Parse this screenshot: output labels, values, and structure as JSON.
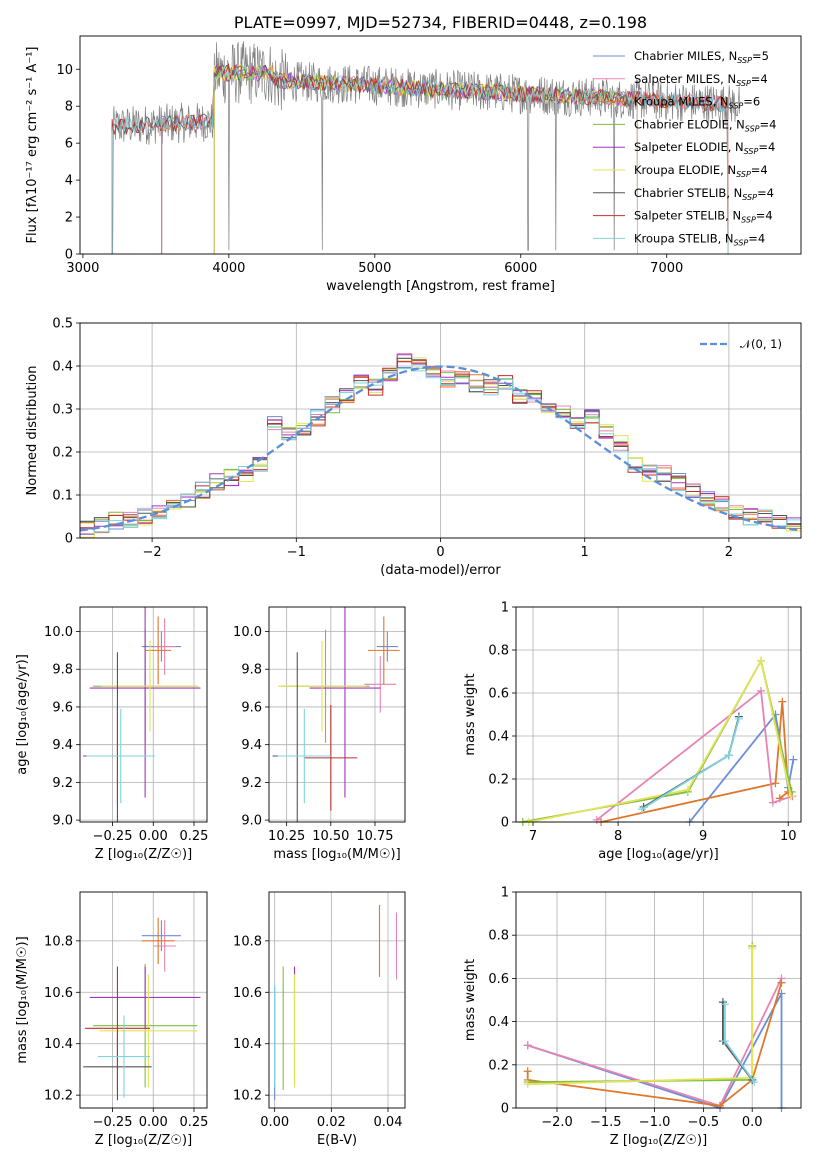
{
  "chart_data": [
    {
      "id": "spectrum",
      "type": "line",
      "title": "PLATE=0997, MJD=52734, FIBERID=0448, z=0.198",
      "xlabel": "wavelength [Angstrom, rest frame]",
      "ylabel": "Flux [fλ10⁻¹⁷ erg cm⁻² s⁻¹ A⁻¹]",
      "xlim": [
        2980,
        7920
      ],
      "ylim": [
        0,
        11.8
      ],
      "xticks": [
        3000,
        4000,
        5000,
        6000,
        7000
      ],
      "yticks": [
        0,
        2,
        4,
        6,
        8,
        10
      ],
      "grid": false,
      "legend_position": "top-right",
      "series": [
        {
          "name": "Chabrier MILES, N",
          "sub": "SSP",
          "suffix": "=5",
          "color": "#6a8fd8",
          "start": 3540,
          "end": 7420
        },
        {
          "name": "Salpeter MILES, N",
          "sub": "SSP",
          "suffix": "=4",
          "color": "#e783b3",
          "start": 3540,
          "end": 7420
        },
        {
          "name": "Kroupa MILES, N",
          "sub": "SSP",
          "suffix": "=6",
          "color": "#e0762a",
          "start": 3540,
          "end": 7420
        },
        {
          "name": "Chabrier ELODIE, N",
          "sub": "SSP",
          "suffix": "=4",
          "color": "#7fbf3f",
          "start": 3900,
          "end": 6800
        },
        {
          "name": "Salpeter ELODIE, N",
          "sub": "SSP",
          "suffix": "=4",
          "color": "#a235c2",
          "start": 3900,
          "end": 6800
        },
        {
          "name": "Kroupa ELODIE, N",
          "sub": "SSP",
          "suffix": "=4",
          "color": "#e3e35a",
          "start": 3900,
          "end": 6800
        },
        {
          "name": "Chabrier STELIB, N",
          "sub": "SSP",
          "suffix": "=4",
          "color": "#555555",
          "start": 3200,
          "end": 7420
        },
        {
          "name": "Salpeter STELIB, N",
          "sub": "SSP",
          "suffix": "=4",
          "color": "#c0302a",
          "start": 3200,
          "end": 7420
        },
        {
          "name": "Kroupa STELIB, N",
          "sub": "SSP",
          "suffix": "=4",
          "color": "#7fd3e0",
          "start": 3200,
          "end": 7420
        }
      ],
      "data_color": "#808080"
    },
    {
      "id": "residuals",
      "type": "line",
      "xlabel": "(data-model)/error",
      "ylabel": "Normed distribution",
      "xlim": [
        -2.5,
        2.5
      ],
      "ylim": [
        0,
        0.5
      ],
      "xticks": [
        -2,
        -1,
        0,
        1,
        2
      ],
      "yticks": [
        0.0,
        0.1,
        0.2,
        0.3,
        0.4,
        0.5
      ],
      "grid": true,
      "legend_position": "top-right",
      "gaussian_label": "𝒩(0, 1)",
      "gaussian_color": "#5b8fd8",
      "bins": [
        -2.5,
        -2.4,
        -2.3,
        -2.2,
        -2.1,
        -2.0,
        -1.9,
        -1.8,
        -1.7,
        -1.6,
        -1.5,
        -1.4,
        -1.3,
        -1.2,
        -1.1,
        -1.0,
        -0.9,
        -0.8,
        -0.7,
        -0.6,
        -0.5,
        -0.4,
        -0.3,
        -0.2,
        -0.1,
        0.0,
        0.1,
        0.2,
        0.3,
        0.4,
        0.5,
        0.6,
        0.7,
        0.8,
        0.9,
        1.0,
        1.1,
        1.2,
        1.3,
        1.4,
        1.5,
        1.6,
        1.7,
        1.8,
        1.9,
        2.0,
        2.1,
        2.2,
        2.3,
        2.4
      ],
      "base_values": [
        0.02,
        0.03,
        0.04,
        0.04,
        0.05,
        0.06,
        0.08,
        0.09,
        0.11,
        0.13,
        0.14,
        0.15,
        0.17,
        0.27,
        0.24,
        0.25,
        0.28,
        0.31,
        0.33,
        0.36,
        0.35,
        0.38,
        0.41,
        0.4,
        0.39,
        0.37,
        0.37,
        0.36,
        0.35,
        0.36,
        0.33,
        0.33,
        0.31,
        0.29,
        0.27,
        0.28,
        0.25,
        0.22,
        0.17,
        0.15,
        0.15,
        0.13,
        0.11,
        0.09,
        0.08,
        0.06,
        0.05,
        0.05,
        0.04,
        0.03
      ]
    },
    {
      "id": "age-vs-z",
      "type": "scatter",
      "xlabel": "Z [log₁₀(Z/Z☉)]",
      "ylabel": "age  [log₁₀(age/yr)]",
      "xlim": [
        -0.45,
        0.33
      ],
      "ylim": [
        8.99,
        10.13
      ],
      "xticks": [
        -0.25,
        0.0,
        0.25
      ],
      "xtick_labels": [
        "−0.25",
        "0.00",
        "0.25"
      ],
      "yticks": [
        9.0,
        9.2,
        9.4,
        9.6,
        9.8,
        10.0
      ],
      "ytick_labels": [
        "9.0",
        "9.2",
        "9.4",
        "9.6",
        "9.8",
        "10.0"
      ],
      "grid": true,
      "points": [
        {
          "x": 0.05,
          "y": 9.92,
          "xerr": 0.12,
          "yerr": 0.08,
          "color": "#6a8fd8"
        },
        {
          "x": 0.07,
          "y": 9.92,
          "xerr": 0.07,
          "yerr": 0.15,
          "color": "#e783b3"
        },
        {
          "x": 0.03,
          "y": 9.9,
          "xerr": 0.08,
          "yerr": 0.18,
          "color": "#e0762a"
        },
        {
          "x": -0.05,
          "y": 9.71,
          "xerr": 0.32,
          "yerr": 0.3,
          "color": "#7fbf3f"
        },
        {
          "x": -0.05,
          "y": 9.7,
          "xerr": 0.34,
          "yerr": 0.58,
          "color": "#a235c2"
        },
        {
          "x": -0.02,
          "y": 9.71,
          "xerr": 0.3,
          "yerr": 0.24,
          "color": "#e3e35a"
        },
        {
          "x": -0.22,
          "y": 9.34,
          "xerr": 0.21,
          "yerr": 0.55,
          "color": "#555555"
        },
        {
          "x": -0.22,
          "y": 9.34,
          "xerr": 0.21,
          "yerr": 0.26,
          "color": "#c0302a"
        },
        {
          "x": -0.2,
          "y": 9.34,
          "xerr": 0.21,
          "yerr": 0.25,
          "color": "#7fd3e0"
        }
      ]
    },
    {
      "id": "age-vs-mass",
      "type": "scatter",
      "xlabel": "mass [log₁₀(M/M☉)]",
      "xlim": [
        10.15,
        10.92
      ],
      "ylim": [
        8.99,
        10.13
      ],
      "xticks": [
        10.25,
        10.5,
        10.75
      ],
      "xtick_labels": [
        "10.25",
        "10.50",
        "10.75"
      ],
      "yticks": [
        9.0,
        9.2,
        9.4,
        9.6,
        9.8,
        10.0
      ],
      "ytick_labels": [
        "9.0",
        "9.2",
        "9.4",
        "9.6",
        "9.8",
        "10.0"
      ],
      "grid": true,
      "points": [
        {
          "x": 10.82,
          "y": 9.92,
          "xerr": 0.06,
          "yerr": 0.08,
          "color": "#6a8fd8"
        },
        {
          "x": 10.78,
          "y": 9.72,
          "xerr": 0.09,
          "yerr": 0.15,
          "color": "#e783b3"
        },
        {
          "x": 10.8,
          "y": 9.9,
          "xerr": 0.09,
          "yerr": 0.18,
          "color": "#e0762a"
        },
        {
          "x": 10.47,
          "y": 9.71,
          "xerr": 0.25,
          "yerr": 0.3,
          "color": "#7fbf3f"
        },
        {
          "x": 10.58,
          "y": 9.7,
          "xerr": 0.2,
          "yerr": 0.58,
          "color": "#a235c2"
        },
        {
          "x": 10.45,
          "y": 9.71,
          "xerr": 0.25,
          "yerr": 0.24,
          "color": "#e3e35a"
        },
        {
          "x": 10.31,
          "y": 9.34,
          "xerr": 0.14,
          "yerr": 0.55,
          "color": "#555555"
        },
        {
          "x": 10.5,
          "y": 9.33,
          "xerr": 0.15,
          "yerr": 0.28,
          "color": "#c0302a"
        },
        {
          "x": 10.35,
          "y": 9.34,
          "xerr": 0.15,
          "yerr": 0.25,
          "color": "#7fd3e0"
        }
      ]
    },
    {
      "id": "weight-vs-age",
      "type": "line",
      "xlabel": "age  [log₁₀(age/yr)]",
      "ylabel": "mass weight",
      "xlim": [
        6.8,
        10.15
      ],
      "ylim": [
        0,
        1.0
      ],
      "xticks": [
        7,
        8,
        9,
        10
      ],
      "yticks": [
        0.0,
        0.2,
        0.4,
        0.6,
        0.8,
        1.0
      ],
      "grid": true,
      "series": [
        {
          "color": "#6a8fd8",
          "points": [
            [
              8.84,
              0.0
            ],
            [
              9.85,
              0.5
            ],
            [
              10.0,
              0.16
            ],
            [
              10.06,
              0.29
            ]
          ]
        },
        {
          "color": "#e0762a",
          "points": [
            [
              7.8,
              0.0
            ],
            [
              9.85,
              0.18
            ],
            [
              9.93,
              0.56
            ],
            [
              10.0,
              0.14
            ],
            [
              9.9,
              0.11
            ]
          ]
        },
        {
          "color": "#e783b3",
          "points": [
            [
              7.75,
              0.01
            ],
            [
              9.68,
              0.61
            ],
            [
              9.82,
              0.09
            ],
            [
              10.05,
              0.12
            ]
          ]
        },
        {
          "color": "#7fbf3f",
          "points": [
            [
              6.88,
              0.0
            ],
            [
              8.82,
              0.14
            ],
            [
              9.68,
              0.75
            ],
            [
              10.04,
              0.14
            ]
          ]
        },
        {
          "color": "#e3e35a",
          "points": [
            [
              6.95,
              0.0
            ],
            [
              8.82,
              0.15
            ],
            [
              9.68,
              0.75
            ],
            [
              10.03,
              0.12
            ]
          ]
        },
        {
          "color": "#555555",
          "points": [
            [
              8.3,
              0.07
            ],
            [
              9.3,
              0.31
            ],
            [
              9.42,
              0.49
            ]
          ]
        },
        {
          "color": "#7fd3e0",
          "points": [
            [
              8.28,
              0.06
            ],
            [
              9.3,
              0.31
            ],
            [
              9.42,
              0.48
            ]
          ]
        }
      ]
    },
    {
      "id": "mass-vs-z",
      "type": "scatter",
      "xlabel": "Z [log₁₀(Z/Z☉)]",
      "ylabel": "mass [log₁₀(M/M☉)]",
      "xlim": [
        -0.45,
        0.33
      ],
      "ylim": [
        10.15,
        10.99
      ],
      "xticks": [
        -0.25,
        0.0,
        0.25
      ],
      "xtick_labels": [
        "−0.25",
        "0.00",
        "0.25"
      ],
      "yticks": [
        10.2,
        10.4,
        10.6,
        10.8
      ],
      "ytick_labels": [
        "10.2",
        "10.4",
        "10.6",
        "10.8"
      ],
      "grid": true,
      "points": [
        {
          "x": 0.05,
          "y": 10.82,
          "xerr": 0.12,
          "yerr": 0.06,
          "color": "#6a8fd8"
        },
        {
          "x": 0.07,
          "y": 10.78,
          "xerr": 0.07,
          "yerr": 0.1,
          "color": "#e783b3"
        },
        {
          "x": 0.03,
          "y": 10.8,
          "xerr": 0.1,
          "yerr": 0.09,
          "color": "#e0762a"
        },
        {
          "x": -0.05,
          "y": 10.47,
          "xerr": 0.32,
          "yerr": 0.24,
          "color": "#7fbf3f"
        },
        {
          "x": -0.05,
          "y": 10.58,
          "xerr": 0.34,
          "yerr": 0.12,
          "color": "#a235c2"
        },
        {
          "x": -0.03,
          "y": 10.45,
          "xerr": 0.3,
          "yerr": 0.22,
          "color": "#e3e35a"
        },
        {
          "x": -0.22,
          "y": 10.31,
          "xerr": 0.21,
          "yerr": 0.13,
          "color": "#555555"
        },
        {
          "x": -0.22,
          "y": 10.46,
          "xerr": 0.2,
          "yerr": 0.24,
          "color": "#c0302a"
        },
        {
          "x": -0.18,
          "y": 10.35,
          "xerr": 0.16,
          "yerr": 0.16,
          "color": "#7fd3e0"
        }
      ]
    },
    {
      "id": "mass-vs-ebv",
      "type": "scatter",
      "xlabel": "E(B-V)",
      "xlim": [
        -0.002,
        0.046
      ],
      "ylim": [
        10.15,
        10.99
      ],
      "xticks": [
        0.0,
        0.02,
        0.04
      ],
      "xtick_labels": [
        "0.00",
        "0.02",
        "0.04"
      ],
      "yticks": [
        10.2,
        10.4,
        10.6,
        10.8
      ],
      "ytick_labels": [
        "10.2",
        "10.4",
        "10.6",
        "10.8"
      ],
      "grid": true,
      "points": [
        {
          "x": 0.0,
          "y": 10.4,
          "xerr": 0,
          "yerr": 0.22,
          "color": "#6a8fd8"
        },
        {
          "x": 0.0,
          "y": 10.43,
          "xerr": 0,
          "yerr": 0.2,
          "color": "#7fd3e0"
        },
        {
          "x": 0.003,
          "y": 10.46,
          "xerr": 0,
          "yerr": 0.24,
          "color": "#7fbf3f"
        },
        {
          "x": 0.007,
          "y": 10.47,
          "xerr": 0,
          "yerr": 0.23,
          "color": "#a235c2"
        },
        {
          "x": 0.007,
          "y": 10.45,
          "xerr": 0,
          "yerr": 0.22,
          "color": "#e3e35a"
        },
        {
          "x": 0.037,
          "y": 10.8,
          "xerr": 0,
          "yerr": 0.14,
          "color": "#e0762a"
        },
        {
          "x": 0.043,
          "y": 10.78,
          "xerr": 0,
          "yerr": 0.13,
          "color": "#e783b3"
        }
      ]
    },
    {
      "id": "weight-vs-z",
      "type": "line",
      "xlabel": "Z [log₁₀(Z/Z☉)]",
      "ylabel": "mass weight",
      "xlim": [
        -2.42,
        0.5
      ],
      "ylim": [
        0,
        1.0
      ],
      "xticks": [
        -2.0,
        -1.5,
        -1.0,
        -0.5,
        0.0
      ],
      "xtick_labels": [
        "−2.0",
        "−1.5",
        "−1.0",
        "−0.5",
        "0.0"
      ],
      "yticks": [
        0.0,
        0.2,
        0.4,
        0.6,
        0.8,
        1.0
      ],
      "grid": true,
      "series": [
        {
          "color": "#6a8fd8",
          "points": [
            [
              -2.3,
              0.29
            ],
            [
              -0.33,
              0.0
            ],
            [
              0.3,
              0.53
            ],
            [
              0.3,
              0.0
            ]
          ]
        },
        {
          "color": "#e783b3",
          "points": [
            [
              -2.3,
              0.29
            ],
            [
              -0.33,
              0.01
            ],
            [
              0.3,
              0.6
            ]
          ]
        },
        {
          "color": "#e0762a",
          "points": [
            [
              -2.3,
              0.17
            ],
            [
              -2.3,
              0.13
            ],
            [
              -0.33,
              0.01
            ],
            [
              0.0,
              0.13
            ],
            [
              0.3,
              0.58
            ]
          ]
        },
        {
          "color": "#7fbf3f",
          "points": [
            [
              -2.3,
              0.12
            ],
            [
              0.0,
              0.13
            ],
            [
              0.0,
              0.75
            ]
          ]
        },
        {
          "color": "#e3e35a",
          "points": [
            [
              -2.3,
              0.11
            ],
            [
              0.0,
              0.14
            ],
            [
              0.0,
              0.74
            ]
          ]
        },
        {
          "color": "#555555",
          "points": [
            [
              -0.3,
              0.49
            ],
            [
              -0.3,
              0.31
            ],
            [
              0.0,
              0.13
            ]
          ]
        },
        {
          "color": "#7fd3e0",
          "points": [
            [
              -0.28,
              0.48
            ],
            [
              -0.28,
              0.31
            ],
            [
              0.02,
              0.12
            ]
          ]
        }
      ]
    }
  ]
}
